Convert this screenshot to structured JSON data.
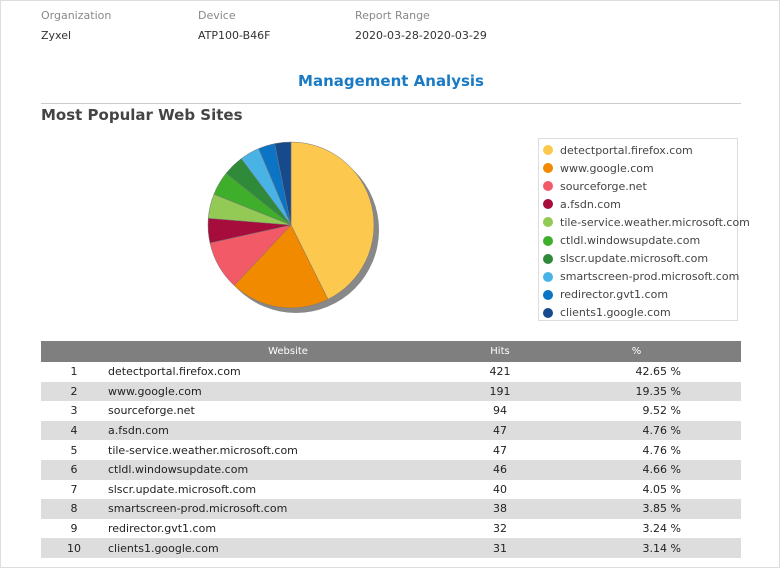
{
  "header": {
    "org_label": "Organization",
    "org": "Zyxel",
    "device_label": "Device",
    "device": "ATP100-B46F",
    "range_label": "Report Range",
    "range": "2020-03-28-2020-03-29"
  },
  "title": "Management Analysis",
  "section": "Most Popular Web Sites",
  "table": {
    "headers": [
      "",
      "Website",
      "Hits",
      "%"
    ],
    "rows": [
      [
        "1",
        "detectportal.firefox.com",
        "421",
        "42.65 %"
      ],
      [
        "2",
        "www.google.com",
        "191",
        "19.35 %"
      ],
      [
        "3",
        "sourceforge.net",
        "94",
        "9.52 %"
      ],
      [
        "4",
        "a.fsdn.com",
        "47",
        "4.76 %"
      ],
      [
        "5",
        "tile-service.weather.microsoft.com",
        "47",
        "4.76 %"
      ],
      [
        "6",
        "ctldl.windowsupdate.com",
        "46",
        "4.66 %"
      ],
      [
        "7",
        "slscr.update.microsoft.com",
        "40",
        "4.05 %"
      ],
      [
        "8",
        "smartscreen-prod.microsoft.com",
        "38",
        "3.85 %"
      ],
      [
        "9",
        "redirector.gvt1.com",
        "32",
        "3.24 %"
      ],
      [
        "10",
        "clients1.google.com",
        "31",
        "3.14 %"
      ]
    ]
  },
  "chart_data": {
    "type": "pie",
    "title": "Most Popular Web Sites",
    "legend_position": "right",
    "categories": [
      "detectportal.firefox.com",
      "www.google.com",
      "sourceforge.net",
      "a.fsdn.com",
      "tile-service.weather.microsoft.com",
      "ctldl.windowsupdate.com",
      "slscr.update.microsoft.com",
      "smartscreen-prod.microsoft.com",
      "redirector.gvt1.com",
      "clients1.google.com"
    ],
    "values": [
      421,
      191,
      94,
      47,
      47,
      46,
      40,
      38,
      32,
      31
    ],
    "colors": [
      "#fdc84e",
      "#f28a00",
      "#f25a68",
      "#a60d3c",
      "#93c955",
      "#3fae2a",
      "#2f8a3a",
      "#4ab3e6",
      "#0b74c4",
      "#174a8c"
    ]
  }
}
